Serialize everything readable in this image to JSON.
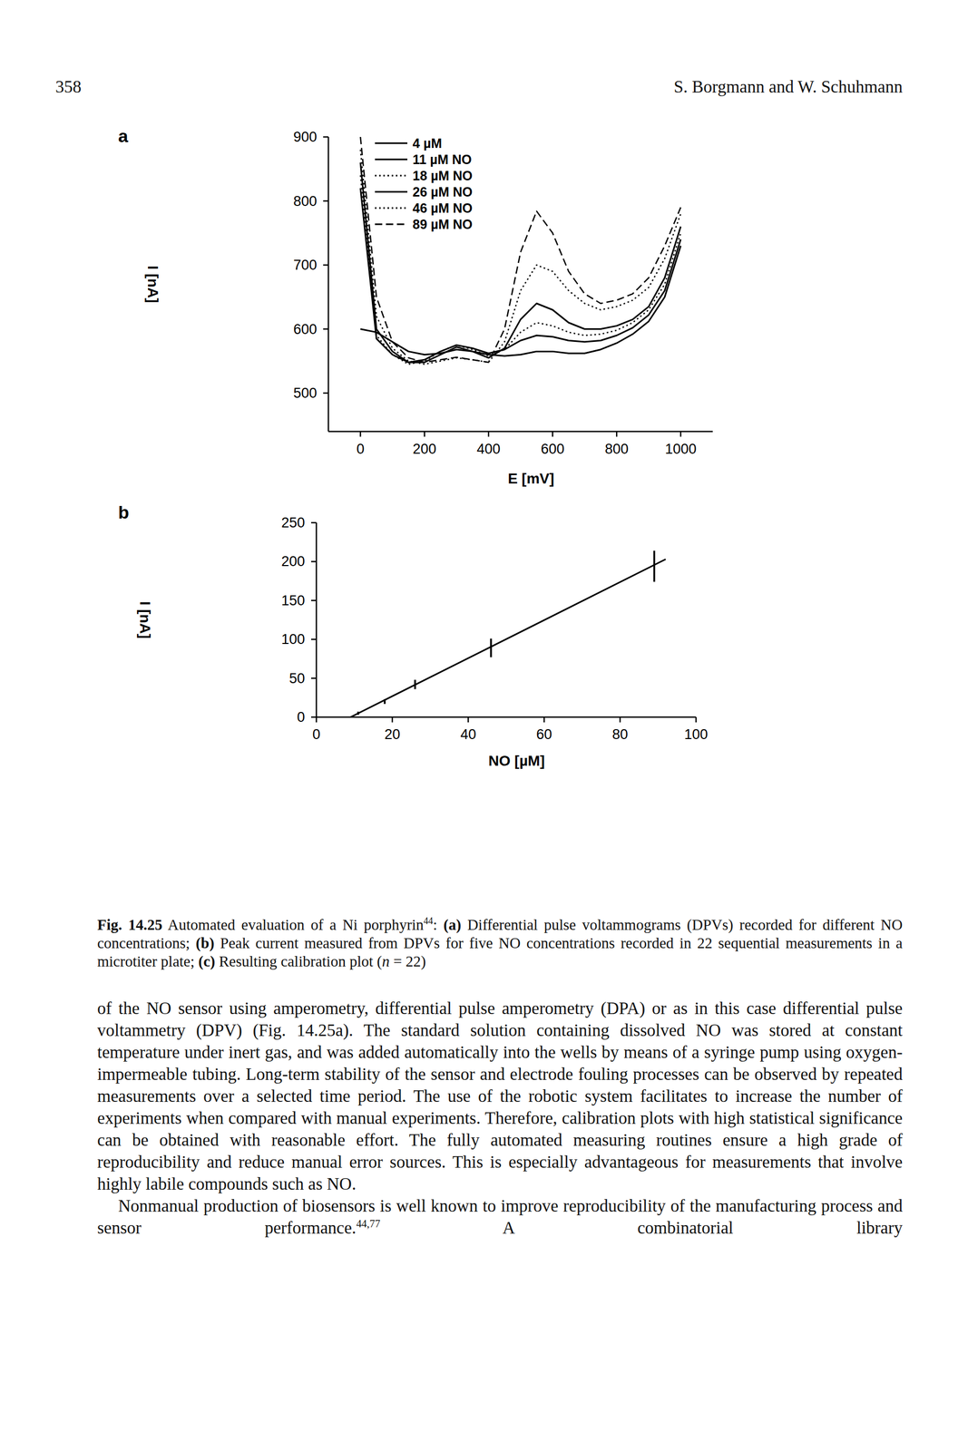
{
  "header": {
    "page": "358",
    "authors": "S. Borgmann and W. Schuhmann"
  },
  "chart_data": [
    {
      "type": "line",
      "title": "a",
      "x_label": "E [mV]",
      "y_label": "I [nA]",
      "x": [
        0,
        50,
        100,
        150,
        200,
        250,
        300,
        350,
        400,
        450,
        500,
        550,
        600,
        650,
        700,
        750,
        800,
        850,
        900,
        950,
        1000
      ],
      "series": [
        {
          "name": "4 µM",
          "color": "#000000",
          "line_style": "solid",
          "values": [
            600,
            595,
            580,
            565,
            560,
            562,
            568,
            565,
            560,
            558,
            560,
            565,
            565,
            562,
            562,
            568,
            578,
            592,
            612,
            650,
            730
          ]
        },
        {
          "name": "11 µM NO",
          "color": "#000000",
          "line_style": "solid",
          "values": [
            820,
            585,
            560,
            548,
            552,
            565,
            575,
            570,
            562,
            568,
            582,
            590,
            588,
            582,
            580,
            582,
            590,
            602,
            622,
            660,
            740
          ]
        },
        {
          "name": "18 µM NO",
          "color": "#000000",
          "line_style": "dotted",
          "values": [
            840,
            590,
            560,
            545,
            550,
            565,
            575,
            568,
            558,
            568,
            595,
            610,
            605,
            595,
            590,
            592,
            598,
            610,
            630,
            670,
            750
          ]
        },
        {
          "name": "26 µM NO",
          "color": "#000000",
          "line_style": "solid",
          "values": [
            860,
            600,
            565,
            548,
            548,
            560,
            572,
            565,
            555,
            570,
            615,
            640,
            630,
            610,
            600,
            600,
            605,
            615,
            635,
            680,
            760
          ]
        },
        {
          "name": "46 µM NO",
          "color": "#000000",
          "line_style": "dotted",
          "values": [
            880,
            620,
            570,
            550,
            545,
            550,
            555,
            552,
            548,
            580,
            660,
            700,
            690,
            660,
            640,
            630,
            635,
            645,
            665,
            710,
            780
          ]
        },
        {
          "name": "89 µM NO",
          "color": "#000000",
          "line_style": "dashed",
          "values": [
            900,
            650,
            580,
            555,
            548,
            552,
            556,
            552,
            548,
            600,
            720,
            784,
            750,
            690,
            655,
            640,
            645,
            655,
            680,
            730,
            790
          ]
        }
      ],
      "xlim": [
        -100,
        1100
      ],
      "xticks": [
        0,
        200,
        400,
        600,
        800,
        1000
      ],
      "ylim": [
        440,
        900
      ],
      "yticks": [
        500,
        600,
        700,
        800,
        900
      ],
      "legend": "upper left",
      "grid": false
    },
    {
      "type": "line",
      "title": "b",
      "x_label": "NO [µM]",
      "y_label": "I [nA]",
      "series": [
        {
          "type": "line",
          "color": "#000000",
          "line_style": "solid",
          "x": [
            9,
            92
          ],
          "values": [
            0,
            203
          ]
        },
        {
          "type": "scatter",
          "color": "#000000",
          "marker": "none",
          "x": [
            11,
            18,
            26,
            46,
            89
          ],
          "values": [
            5,
            20,
            42,
            89,
            194
          ],
          "errors": [
            2,
            3,
            6,
            12,
            20
          ]
        }
      ],
      "xlim": [
        0,
        100
      ],
      "xticks": [
        0,
        20,
        40,
        60,
        80,
        100
      ],
      "ylim": [
        0,
        250
      ],
      "yticks": [
        0,
        50,
        100,
        150,
        200,
        250
      ],
      "grid": false
    }
  ],
  "caption": [
    {
      "text": "Fig. 14.25",
      "style": "bold"
    },
    {
      "text": " Automated evaluation of a Ni porphyrin"
    },
    {
      "text": "44",
      "style": "sup"
    },
    {
      "text": ": "
    },
    {
      "text": "(a)",
      "style": "bold"
    },
    {
      "text": " Differential pulse voltammograms (DPVs) recorded for different NO concentrations; "
    },
    {
      "text": "(b)",
      "style": "bold"
    },
    {
      "text": " Peak current measured from DPVs for five NO concentrations recorded in 22 sequential measurements in a microtiter plate; "
    },
    {
      "text": "(c)",
      "style": "bold"
    },
    {
      "text": " Resulting calibration plot ("
    },
    {
      "text": "n",
      "style": "italic"
    },
    {
      "text": " = 22)"
    }
  ],
  "body": [
    {
      "indent": false,
      "runs": [
        {
          "text": "of the NO sensor using amperometry, differential pulse amperometry (DPA) or as in this case differential pulse voltammetry (DPV) (Fig. 14.25a). The standard solution containing dissolved NO was stored at constant temperature under inert gas, and was added automatically into the wells by means of a syringe pump using oxygen-impermeable tubing. Long-term stability of the sensor and electrode fouling processes can be observed by repeated measurements over a selected time period. The use of the robotic system facilitates to increase the number of experiments when compared with manual experiments. Therefore, calibration plots with high statistical significance can be obtained with reasonable effort. The fully automated measuring routines ensure a high grade of reproducibility and reduce manual error sources. This is especially advantageous for measurements that involve highly labile compounds such as NO."
        }
      ]
    },
    {
      "indent": true,
      "runs": [
        {
          "text": "Nonmanual production of biosensors is well known to improve reproducibility of the manufacturing process and sensor performance."
        },
        {
          "text": "44,77",
          "style": "sup"
        },
        {
          "text": " A combinatorial library"
        }
      ]
    }
  ]
}
